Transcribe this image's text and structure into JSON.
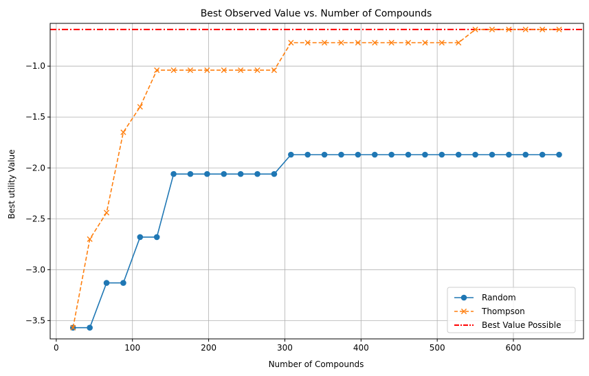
{
  "chart_data": {
    "type": "line",
    "title": "Best Observed Value vs. Number of Compounds",
    "xlabel": "Number of Compounds",
    "ylabel": "Best utility Value",
    "xlim": [
      -8,
      692
    ],
    "ylim": [
      -3.68,
      -0.58
    ],
    "xticks": [
      0,
      100,
      200,
      300,
      400,
      500,
      600
    ],
    "yticks": [
      -3.5,
      -3.0,
      -2.5,
      -2.0,
      -1.5,
      -1.0
    ],
    "xtick_labels": [
      "0",
      "100",
      "200",
      "300",
      "400",
      "500",
      "600"
    ],
    "ytick_labels": [
      "−3.5",
      "−3.0",
      "−2.5",
      "−2.0",
      "−1.5",
      "−1.0"
    ],
    "grid": true,
    "legend_position": "lower-right",
    "x": [
      22,
      44,
      66,
      88,
      110,
      132,
      154,
      176,
      198,
      220,
      242,
      264,
      286,
      308,
      330,
      352,
      374,
      396,
      418,
      440,
      462,
      484,
      506,
      528,
      550,
      572,
      594,
      616,
      638,
      660
    ],
    "series": [
      {
        "name": "Random",
        "color": "#1f77b4",
        "style": "solid",
        "marker": "circle",
        "values": [
          -3.57,
          -3.57,
          -3.13,
          -3.13,
          -2.68,
          -2.68,
          -2.06,
          -2.06,
          -2.06,
          -2.06,
          -2.06,
          -2.06,
          -2.06,
          -1.87,
          -1.87,
          -1.87,
          -1.87,
          -1.87,
          -1.87,
          -1.87,
          -1.87,
          -1.87,
          -1.87,
          -1.87,
          -1.87,
          -1.87,
          -1.87,
          -1.87,
          -1.87,
          -1.87
        ]
      },
      {
        "name": "Thompson",
        "color": "#ff7f0e",
        "style": "dashed",
        "marker": "x",
        "values": [
          -3.57,
          -2.7,
          -2.44,
          -1.65,
          -1.4,
          -1.04,
          -1.04,
          -1.04,
          -1.04,
          -1.04,
          -1.04,
          -1.04,
          -1.04,
          -0.77,
          -0.77,
          -0.77,
          -0.77,
          -0.77,
          -0.77,
          -0.77,
          -0.77,
          -0.77,
          -0.77,
          -0.77,
          -0.64,
          -0.64,
          -0.64,
          -0.64,
          -0.64,
          -0.64
        ]
      }
    ],
    "reference_line": {
      "name": "Best Value Possible",
      "color": "#ff0000",
      "style": "dashdot",
      "value": -0.64
    }
  }
}
